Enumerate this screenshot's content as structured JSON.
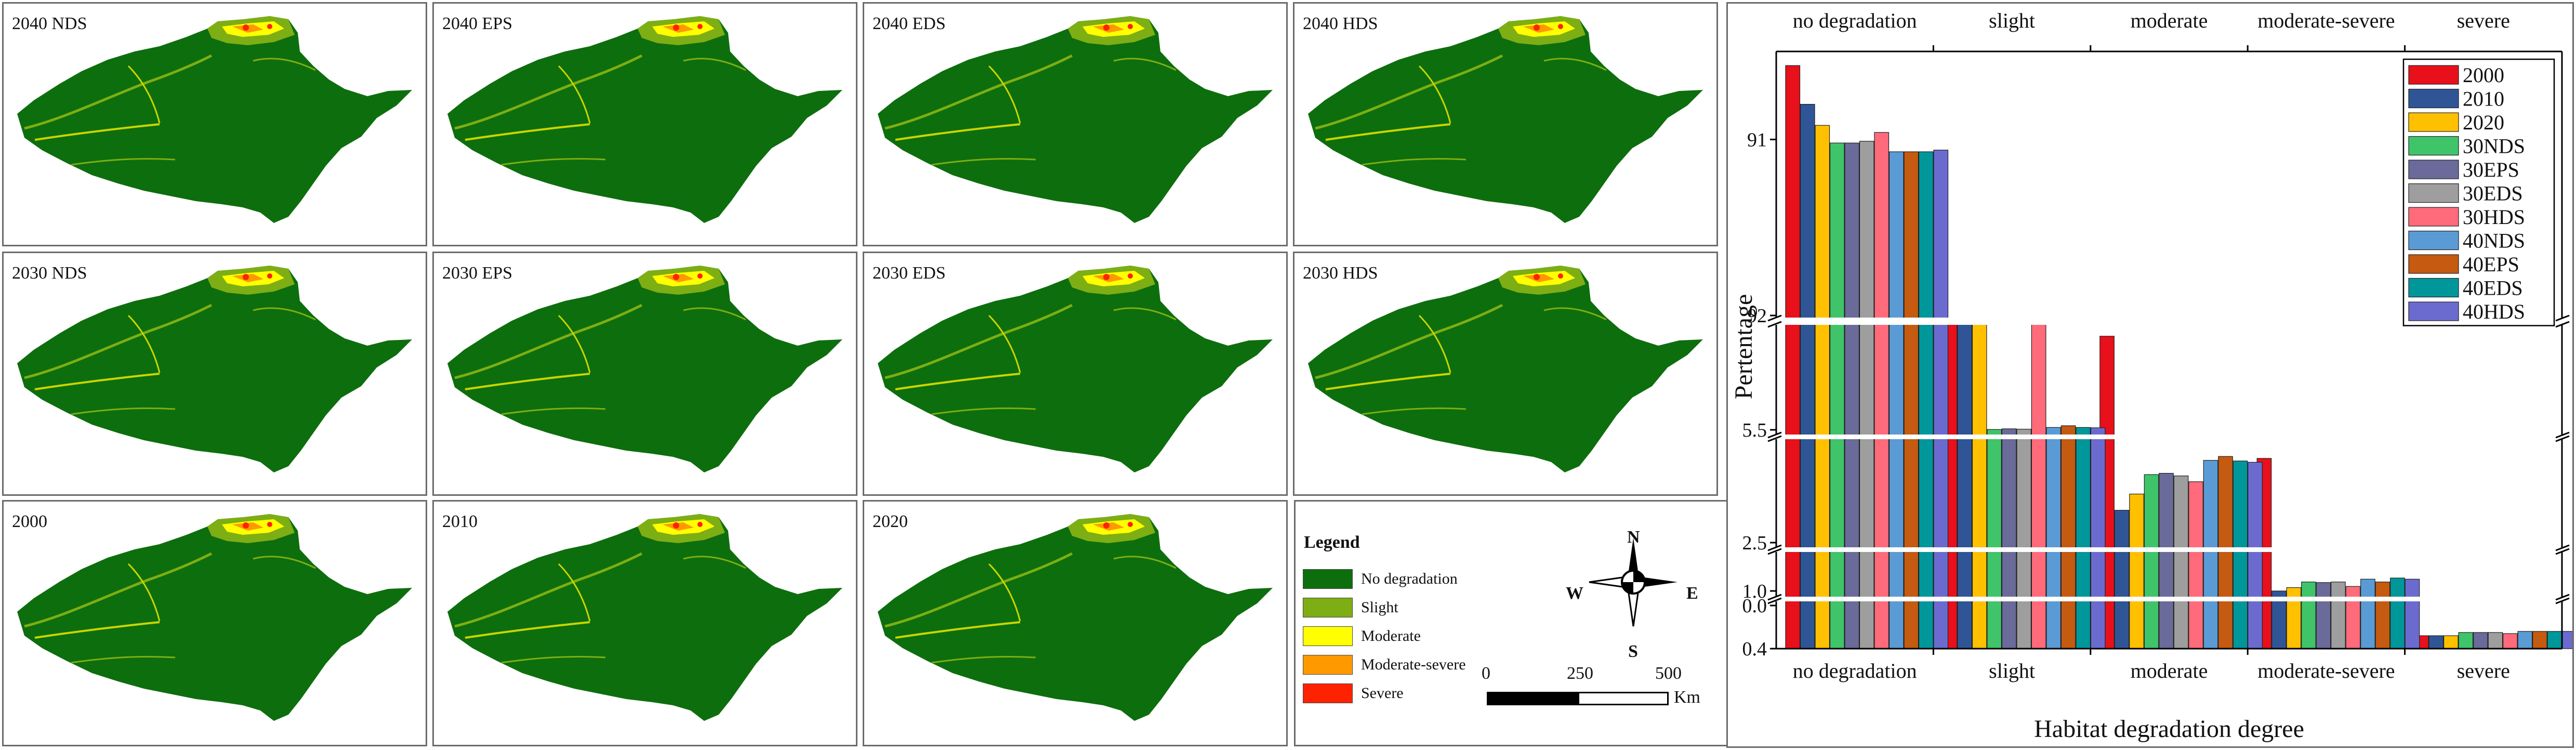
{
  "maps": [
    {
      "label": "2040 NDS"
    },
    {
      "label": "2040 EPS"
    },
    {
      "label": "2040 EDS"
    },
    {
      "label": "2040 HDS"
    },
    {
      "label": "2030 NDS"
    },
    {
      "label": "2030 EPS"
    },
    {
      "label": "2030 EDS"
    },
    {
      "label": "2030 HDS"
    },
    {
      "label": "2000"
    },
    {
      "label": "2010"
    },
    {
      "label": "2020"
    }
  ],
  "legend": {
    "title": "Legend",
    "items": [
      {
        "label": "No degradation",
        "color": "#0d6e0d"
      },
      {
        "label": "Slight",
        "color": "#7dae14"
      },
      {
        "label": "Moderate",
        "color": "#ffff00"
      },
      {
        "label": "Moderate-severe",
        "color": "#ff9900"
      },
      {
        "label": "Severe",
        "color": "#ff2200"
      }
    ]
  },
  "compass": {
    "north": "N",
    "south": "S",
    "east": "E",
    "west": "W"
  },
  "scale_bar": {
    "ticks": [
      "0",
      "250",
      "500"
    ],
    "unit": "Km"
  },
  "chart_data": {
    "type": "bar",
    "xlabel": "Habitat degradation degree",
    "ylabel": "Pertentage",
    "categories": [
      "no degradation",
      "slight",
      "moderate",
      "moderate-severe",
      "severe"
    ],
    "axis_breaks": true,
    "y_ticks": [
      "0.0",
      "0.4",
      "1.0",
      "2.5",
      "5.5",
      "91",
      "92"
    ],
    "legend_position": "top-right",
    "series": [
      {
        "name": "2000",
        "color": "#e8101a",
        "values": [
          90.58,
          5.78,
          2.77,
          1.2,
          0.28
        ]
      },
      {
        "name": "2010",
        "color": "#2f5597",
        "values": [
          90.8,
          5.62,
          2.0,
          1.0,
          0.28
        ]
      },
      {
        "name": "2020",
        "color": "#ffc000",
        "values": [
          90.92,
          5.53,
          1.75,
          0.94,
          0.28
        ]
      },
      {
        "name": "30NDS",
        "color": "#3fc46a",
        "values": [
          91.02,
          5.49,
          1.45,
          0.84,
          0.25
        ]
      },
      {
        "name": "30EPS",
        "color": "#6a6b9a",
        "values": [
          91.02,
          5.47,
          1.43,
          0.85,
          0.25
        ]
      },
      {
        "name": "30EDS",
        "color": "#9e9e9e",
        "values": [
          91.01,
          5.48,
          1.47,
          0.84,
          0.25
        ]
      },
      {
        "name": "30HDS",
        "color": "#ff6b7a",
        "values": [
          90.96,
          5.55,
          1.56,
          0.92,
          0.26
        ]
      },
      {
        "name": "40NDS",
        "color": "#5b9bd5",
        "values": [
          91.07,
          5.43,
          1.23,
          0.79,
          0.24
        ]
      },
      {
        "name": "40EPS",
        "color": "#c55a11",
        "values": [
          91.07,
          5.38,
          1.17,
          0.84,
          0.24
        ]
      },
      {
        "name": "40EDS",
        "color": "#00979a",
        "values": [
          91.07,
          5.43,
          1.24,
          0.77,
          0.24
        ]
      },
      {
        "name": "40HDS",
        "color": "#6b6bcf",
        "values": [
          91.06,
          5.44,
          1.26,
          0.79,
          0.24
        ]
      }
    ]
  }
}
